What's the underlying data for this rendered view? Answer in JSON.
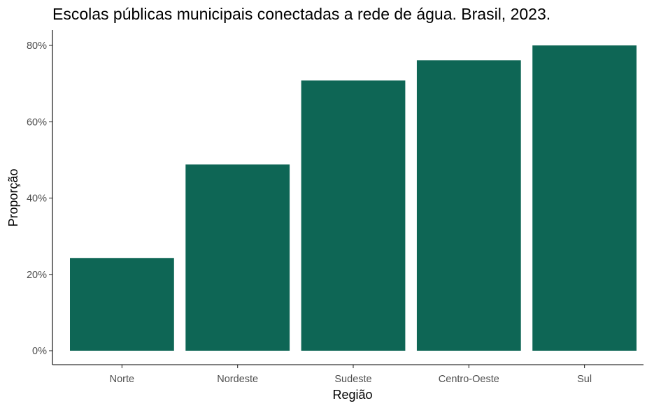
{
  "chart_data": {
    "type": "bar",
    "title": "Escolas públicas municipais conectadas a rede de água. Brasil, 2023.",
    "xlabel": "Região",
    "ylabel": "Proporção",
    "categories": [
      "Norte",
      "Nordeste",
      "Sudeste",
      "Centro-Oeste",
      "Sul"
    ],
    "values": [
      0.243,
      0.488,
      0.708,
      0.761,
      0.8
    ],
    "ylim": [
      0,
      0.8
    ],
    "yticks": [
      0,
      0.2,
      0.4,
      0.6,
      0.8
    ],
    "ytick_labels": [
      "0%",
      "20%",
      "40%",
      "60%",
      "80%"
    ],
    "bar_color": "#0e6655",
    "grid": false,
    "legend": "none"
  }
}
